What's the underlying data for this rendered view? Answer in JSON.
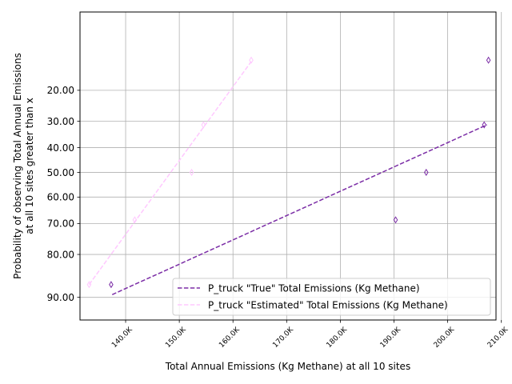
{
  "chart_data": {
    "type": "scatter",
    "title": "",
    "xlabel": "Total Annual Emissions (Kg Methane) at all 10 sites",
    "ylabel_lines": [
      "Probability of observing Total Annual Emissions",
      "at all 10 sites greater than x"
    ],
    "x_ticks": [
      {
        "value": 140000,
        "label": "140.0K"
      },
      {
        "value": 150000,
        "label": "150.0K"
      },
      {
        "value": 160000,
        "label": "160.0K"
      },
      {
        "value": 170000,
        "label": "170.0K"
      },
      {
        "value": 180000,
        "label": "180.0K"
      },
      {
        "value": 190000,
        "label": "190.0K"
      },
      {
        "value": 200000,
        "label": "200.0K"
      },
      {
        "value": 210000,
        "label": "210.0K"
      }
    ],
    "y_ticks": [
      {
        "value": 20,
        "label": "20.00"
      },
      {
        "value": 30,
        "label": "30.00"
      },
      {
        "value": 40,
        "label": "40.00"
      },
      {
        "value": 50,
        "label": "50.00"
      },
      {
        "value": 60,
        "label": "60.00"
      },
      {
        "value": 70,
        "label": "70.00"
      },
      {
        "value": 80,
        "label": "80.00"
      },
      {
        "value": 90,
        "label": "90.00"
      }
    ],
    "y_scale": "probability (normal quantile)",
    "xlim": [
      131500,
      209000
    ],
    "ylim": [
      5,
      93.5
    ],
    "grid": true,
    "legend_position": "lower-right",
    "series": [
      {
        "name": "P_truck \"True\" Total Emissions (Kg Methane)",
        "color": "#7b2da6",
        "marker": "thin_diamond",
        "points": [
          {
            "x": 137300,
            "y": 87.5
          },
          {
            "x": 190300,
            "y": 68.7
          },
          {
            "x": 196000,
            "y": 50.0
          },
          {
            "x": 206800,
            "y": 31.3
          },
          {
            "x": 207600,
            "y": 12.5
          }
        ],
        "fit_line": [
          {
            "x": 137500,
            "y": 89.5
          },
          {
            "x": 207300,
            "y": 31.3
          }
        ]
      },
      {
        "name": "P_truck \"Estimated\" Total Emissions (Kg Methane)",
        "color": "#ffc8ff",
        "marker": "thin_diamond",
        "points": [
          {
            "x": 133200,
            "y": 87.5
          },
          {
            "x": 141700,
            "y": 68.7
          },
          {
            "x": 152300,
            "y": 50.0
          },
          {
            "x": 154500,
            "y": 31.3
          },
          {
            "x": 163400,
            "y": 12.5
          }
        ],
        "fit_line": [
          {
            "x": 133200,
            "y": 87.5
          },
          {
            "x": 163400,
            "y": 12.8
          }
        ]
      }
    ]
  }
}
